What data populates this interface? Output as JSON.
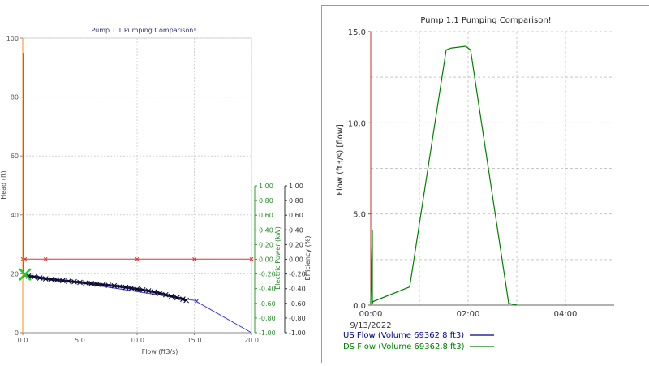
{
  "chart_data": [
    {
      "type": "line",
      "title": "Pump 1.1 Pumping Comparison!",
      "xlabel": "Flow (ft3/s)",
      "ylabel": "Head (ft)",
      "y2label": "Electric Power (kW)",
      "y3label": "Efficiency (%)",
      "xlim": [
        0,
        20
      ],
      "ylim": [
        0,
        100
      ],
      "y2lim": [
        -1,
        1
      ],
      "y3lim": [
        -1,
        1
      ],
      "x_ticks": [
        "0.0",
        "5.0",
        "10.0",
        "15.0",
        "20.0"
      ],
      "y_ticks": [
        "0",
        "20",
        "40",
        "60",
        "80",
        "100"
      ],
      "y2_ticks": [
        "-1.00",
        "-0.80",
        "-0.60",
        "-0.40",
        "-0.20",
        "0.00",
        "0.20",
        "0.40",
        "0.60",
        "0.80",
        "1.00"
      ],
      "y3_ticks": [
        "-1.00",
        "-0.80",
        "-0.60",
        "-0.40",
        "-0.20",
        "0.00",
        "0.20",
        "0.40",
        "0.60",
        "0.80",
        "1.00"
      ],
      "grid": true,
      "series": [
        {
          "color": "#3333dd",
          "x": [
            0.05,
            0.05,
            0.15,
            15,
            20
          ],
          "y": [
            95,
            20,
            19.8,
            11,
            0
          ]
        },
        {
          "color": "#dd3333",
          "x": [
            0,
            0.2,
            2,
            10,
            15,
            20
          ],
          "y": [
            25,
            25,
            25,
            25,
            25,
            25
          ]
        },
        {
          "color": "#ff8c1a",
          "x": [
            0,
            0
          ],
          "y": [
            0,
            100
          ]
        },
        {
          "color": "#000055",
          "markers": "x",
          "x": [
            0.2,
            0.5,
            1,
            1.5,
            2,
            2.5,
            3,
            3.5,
            4,
            4.5,
            5,
            5.5,
            6,
            6.5,
            7,
            7.5,
            8,
            8.5,
            9,
            9.5,
            10,
            10.5,
            11,
            11.5,
            12,
            12.5,
            13,
            13.5,
            14,
            14.3
          ],
          "y": [
            19.5,
            19.2,
            18.9,
            18.6,
            18.3,
            18.1,
            17.9,
            17.7,
            17.5,
            17.3,
            17.1,
            16.9,
            16.7,
            16.5,
            16.3,
            16.1,
            15.9,
            15.7,
            15.4,
            15.1,
            14.8,
            14.5,
            14.2,
            13.8,
            13.4,
            12.9,
            12.4,
            11.9,
            11.4,
            11
          ]
        }
      ]
    },
    {
      "type": "line",
      "title": "Pump 1.1 Pumping Comparison!",
      "xlabel": "",
      "ylabel": "Flow (ft3/s) [flow]",
      "x_units": "minutes",
      "xlim": [
        0,
        300
      ],
      "ylim": [
        0,
        15
      ],
      "x_ticks": [
        "00:00",
        "02:00",
        "04:00"
      ],
      "date_label": "9/13/2022",
      "y_ticks": [
        "0.0",
        "5.0",
        "10.0",
        "15.0"
      ],
      "grid": true,
      "legend": "bottom-left",
      "series": [
        {
          "name": "US Flow (Volume 69362.8 ft3)",
          "color": "#00008b",
          "x": [],
          "y": []
        },
        {
          "name": "DS Flow (Volume 69362.8 ft3)",
          "color": "#008000",
          "x": [
            0,
            2,
            2,
            3,
            48,
            93,
            99,
            117,
            123,
            170,
            180
          ],
          "y": [
            0.1,
            4.1,
            0.1,
            0.2,
            1.0,
            14.0,
            14.1,
            14.2,
            14.0,
            0.1,
            0
          ]
        }
      ]
    }
  ]
}
